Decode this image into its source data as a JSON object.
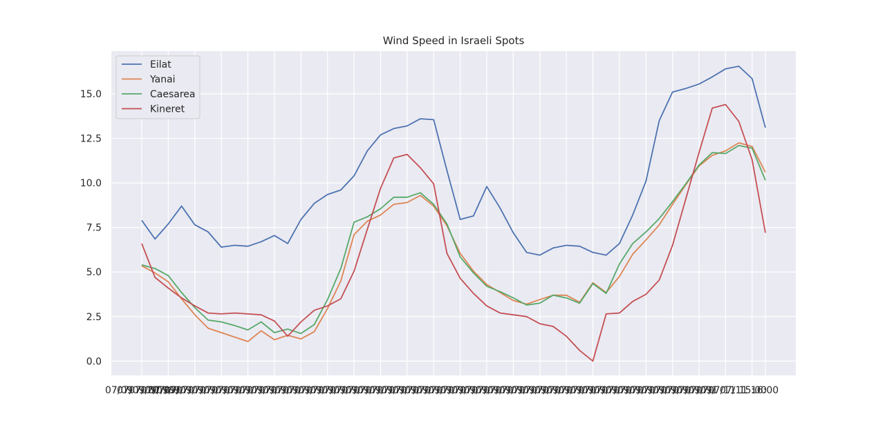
{
  "chart_data": {
    "type": "line",
    "title": "Wind Speed in Israeli Spots",
    "xlabel": "",
    "ylabel": "",
    "x_tick_labels": [
      "07/09",
      "07/09/07/09/",
      "07/09/",
      "07/09/",
      "07/09/",
      "07/09/",
      "07/09/",
      "07/09/",
      "07/09/",
      "07/09/",
      "07/09/",
      "07/09/",
      "07/09/",
      "07/09/",
      "07/09/",
      "07/09/",
      "07/09/",
      "07/09/",
      "07/09/",
      "07/09/",
      "07/09/",
      "07/09/",
      "07/09/",
      "07/09/",
      "07/09/",
      "07/09/",
      "07/09/",
      "07/09/",
      "07/09/",
      "07/09/",
      "07/09/",
      "07/09/",
      "07/09/",
      "07/09/",
      "07/09/",
      "07/09/",
      "07/09/",
      "07/09/",
      "07/09/",
      "07/09/",
      "07/09/",
      "07/09/",
      "07/09/",
      "07/09/",
      "07/09/",
      "07/09/",
      "07/09/",
      "07/09/",
      "07/09/",
      "07/09/",
      "07/1",
      "07/11 15:00",
      "07/11 16:00"
    ],
    "y_ticks": [
      0.0,
      2.5,
      5.0,
      7.5,
      10.0,
      12.5,
      15.0
    ],
    "y_tick_labels": [
      "0.0",
      "2.5",
      "5.0",
      "7.5",
      "10.0",
      "12.5",
      "15.0"
    ],
    "ylim": [
      -0.8,
      17.4
    ],
    "grid": true,
    "legend_position": "top-left",
    "series": [
      {
        "name": "Eilat",
        "color": "#4c72b0",
        "values": [
          7.9,
          6.85,
          7.7,
          8.7,
          7.65,
          7.25,
          6.4,
          6.5,
          6.45,
          6.7,
          7.05,
          6.6,
          7.95,
          8.85,
          9.35,
          9.6,
          10.4,
          11.8,
          12.7,
          13.05,
          13.2,
          13.6,
          13.55,
          10.7,
          7.95,
          8.15,
          9.8,
          8.6,
          7.2,
          6.1,
          5.95,
          6.35,
          6.5,
          6.45,
          6.1,
          5.95,
          6.6,
          8.2,
          10.1,
          13.5,
          15.1,
          15.3,
          15.55,
          15.95,
          16.4,
          16.55,
          15.85,
          13.1
        ]
      },
      {
        "name": "Yanai",
        "color": "#dd8452",
        "values": [
          5.35,
          4.95,
          4.45,
          3.5,
          2.6,
          1.85,
          1.6,
          1.35,
          1.1,
          1.7,
          1.2,
          1.45,
          1.25,
          1.65,
          2.95,
          4.5,
          7.1,
          7.85,
          8.2,
          8.8,
          8.9,
          9.3,
          8.7,
          7.6,
          6.05,
          5.05,
          4.3,
          3.85,
          3.4,
          3.2,
          3.45,
          3.7,
          3.7,
          3.3,
          4.4,
          3.85,
          4.75,
          6.0,
          6.8,
          7.65,
          8.8,
          9.9,
          10.95,
          11.55,
          11.8,
          12.25,
          12.05,
          10.6
        ]
      },
      {
        "name": "Caesarea",
        "color": "#55a868",
        "values": [
          5.4,
          5.2,
          4.8,
          3.85,
          3.0,
          2.3,
          2.2,
          2.0,
          1.75,
          2.2,
          1.6,
          1.8,
          1.55,
          2.05,
          3.45,
          5.2,
          7.8,
          8.1,
          8.55,
          9.2,
          9.2,
          9.45,
          8.8,
          7.7,
          5.85,
          4.95,
          4.2,
          3.9,
          3.55,
          3.15,
          3.25,
          3.7,
          3.55,
          3.25,
          4.35,
          3.8,
          5.45,
          6.6,
          7.25,
          8.0,
          8.95,
          9.95,
          11.0,
          11.7,
          11.65,
          12.1,
          11.95,
          10.15
        ]
      },
      {
        "name": "Kineret",
        "color": "#c44e52",
        "values": [
          6.6,
          4.7,
          4.1,
          3.55,
          3.1,
          2.7,
          2.65,
          2.7,
          2.65,
          2.6,
          2.25,
          1.4,
          2.2,
          2.85,
          3.1,
          3.5,
          5.05,
          7.4,
          9.7,
          11.4,
          11.6,
          10.85,
          9.95,
          6.05,
          4.65,
          3.8,
          3.1,
          2.7,
          2.6,
          2.5,
          2.1,
          1.95,
          1.4,
          0.6,
          0.0,
          2.65,
          2.7,
          3.35,
          3.75,
          4.55,
          6.5,
          9.1,
          11.7,
          14.2,
          14.4,
          13.45,
          11.3,
          7.2
        ]
      }
    ]
  }
}
